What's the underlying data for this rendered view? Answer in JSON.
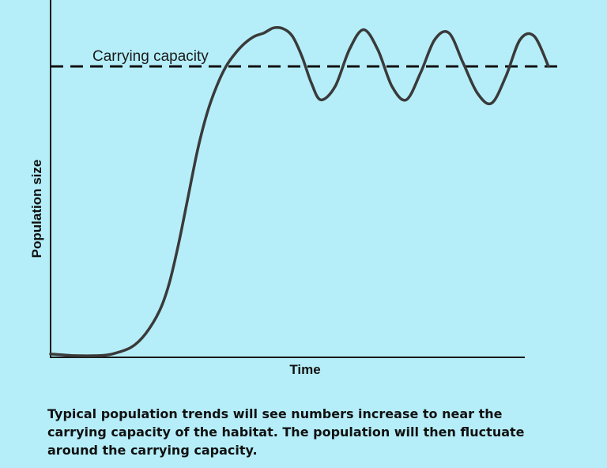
{
  "chart_data": {
    "type": "line",
    "xlabel": "Time",
    "ylabel": "Population size",
    "xlim": [
      0,
      100
    ],
    "ylim": [
      0,
      100
    ],
    "grid": false,
    "axis_ticks": false,
    "reference_lines": [
      {
        "label": "Carrying capacity",
        "y": 87,
        "style": "dashed"
      }
    ],
    "series": [
      {
        "name": "",
        "x": [
          0,
          5,
          10,
          13,
          17,
          20,
          23,
          25,
          27,
          29,
          31,
          33,
          35,
          37,
          39,
          41,
          43,
          45,
          47,
          49,
          51,
          53,
          55,
          57,
          60,
          63,
          66,
          69,
          72,
          75,
          78,
          81,
          84,
          87,
          90,
          93,
          96,
          99,
          102,
          105
        ],
        "y": [
          1,
          0.5,
          0.5,
          1,
          3,
          7,
          14,
          22,
          34,
          48,
          62,
          73,
          81,
          87,
          91,
          94,
          96,
          97,
          98.5,
          98.3,
          96,
          90,
          82,
          77,
          81,
          92,
          98,
          92,
          81,
          77,
          85,
          95,
          97,
          88,
          79,
          76,
          84,
          95,
          96,
          87
        ]
      }
    ]
  },
  "caption": "Typical population trends will see numbers increase to near the carrying capacity of the habitat. The population will then fluctuate around the carrying capacity.",
  "colors": {
    "background": "#b5eef9",
    "line": "#3a3a3a",
    "axis": "#1a1a1a",
    "text": "#111111"
  }
}
